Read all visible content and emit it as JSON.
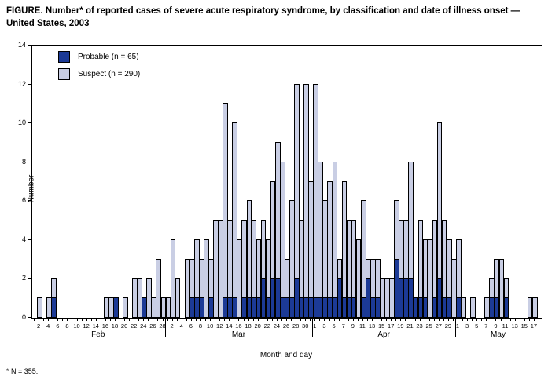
{
  "title": "FIGURE. Number* of reported cases of severe acute respiratory syndrome, by classification and date of illness onset — United States, 2003",
  "footnote": "* N = 355.",
  "colors": {
    "probable": "#1c3a96",
    "suspect": "#c9cee4",
    "axis": "#000000",
    "background": "#ffffff"
  },
  "chart_data": {
    "type": "bar",
    "stacked": true,
    "title": "FIGURE. Number* of reported cases of severe acute respiratory syndrome, by classification and date of illness onset — United States, 2003",
    "xlabel": "Month and day",
    "ylabel": "Number",
    "ylim": [
      0,
      14
    ],
    "yticks": [
      0,
      2,
      4,
      6,
      8,
      10,
      12,
      14
    ],
    "grid": false,
    "legend_position": "top-left-inside",
    "months": [
      {
        "name": "Feb",
        "days": 28,
        "label_days": [
          2,
          4,
          6,
          8,
          10,
          12,
          14,
          16,
          18,
          20,
          22,
          24,
          26,
          28
        ]
      },
      {
        "name": "Mar",
        "days": 31,
        "label_days": [
          2,
          4,
          6,
          8,
          10,
          12,
          14,
          16,
          18,
          20,
          22,
          24,
          26,
          28,
          30
        ]
      },
      {
        "name": "Apr",
        "days": 30,
        "label_days": [
          1,
          3,
          5,
          7,
          9,
          11,
          13,
          15,
          17,
          19,
          21,
          23,
          25,
          27,
          29
        ]
      },
      {
        "name": "May",
        "days": 18,
        "label_days": [
          1,
          3,
          5,
          7,
          9,
          11,
          13,
          15,
          17
        ]
      }
    ],
    "x_domain": "Feb 1 - May 18, one bar per day of illness onset (107 days)",
    "series": [
      {
        "name": "Probable (n = 65)",
        "color": "#1c3a96",
        "values": [
          0,
          0,
          0,
          0,
          1,
          0,
          0,
          0,
          0,
          0,
          0,
          0,
          0,
          0,
          0,
          0,
          0,
          1,
          0,
          0,
          0,
          0,
          0,
          1,
          0,
          0,
          0,
          0,
          0,
          0,
          0,
          0,
          0,
          1,
          1,
          1,
          0,
          1,
          0,
          0,
          1,
          1,
          1,
          0,
          1,
          1,
          1,
          1,
          2,
          1,
          2,
          2,
          1,
          1,
          1,
          2,
          1,
          1,
          1,
          1,
          1,
          1,
          1,
          1,
          2,
          1,
          1,
          1,
          0,
          1,
          2,
          1,
          1,
          0,
          0,
          0,
          3,
          2,
          2,
          2,
          1,
          1,
          1,
          0,
          1,
          2,
          1,
          1,
          0,
          1,
          0,
          0,
          0,
          0,
          0,
          0,
          1,
          1,
          0,
          1,
          0,
          0,
          0,
          0,
          0,
          0,
          0
        ]
      },
      {
        "name": "Suspect (n = 290)",
        "color": "#c9cee4",
        "values": [
          0,
          1,
          0,
          1,
          1,
          0,
          0,
          0,
          0,
          0,
          0,
          0,
          0,
          0,
          0,
          1,
          1,
          0,
          0,
          1,
          0,
          2,
          2,
          0,
          2,
          1,
          3,
          1,
          1,
          4,
          2,
          0,
          3,
          2,
          3,
          2,
          4,
          2,
          5,
          5,
          10,
          4,
          9,
          4,
          4,
          5,
          4,
          3,
          3,
          3,
          5,
          7,
          7,
          2,
          5,
          10,
          4,
          11,
          6,
          11,
          7,
          5,
          6,
          7,
          1,
          6,
          4,
          4,
          4,
          5,
          1,
          2,
          2,
          2,
          2,
          2,
          3,
          3,
          3,
          6,
          0,
          4,
          3,
          4,
          4,
          8,
          4,
          3,
          3,
          3,
          1,
          0,
          1,
          0,
          0,
          1,
          1,
          2,
          3,
          1,
          0,
          0,
          0,
          0,
          1,
          1,
          0
        ]
      }
    ]
  }
}
